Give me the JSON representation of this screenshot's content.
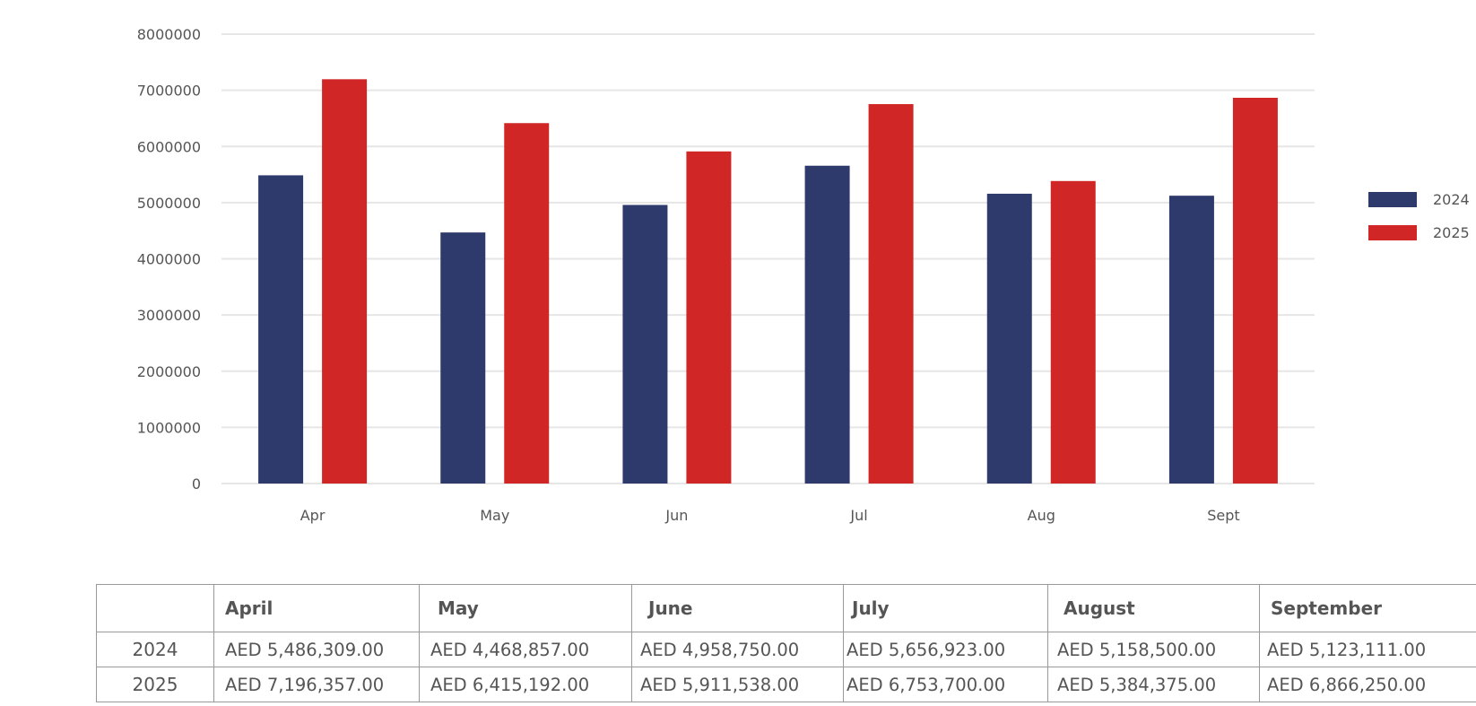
{
  "chart_data": {
    "type": "bar",
    "categories": [
      "Apr",
      "May",
      "Jun",
      "Jul",
      "Aug",
      "Sept"
    ],
    "series": [
      {
        "name": "2024",
        "color": "#2f3a6c",
        "values": [
          5486309,
          4468857,
          4958750,
          5656923,
          5158500,
          5123111
        ]
      },
      {
        "name": "2025",
        "color": "#d12626",
        "values": [
          7196357,
          6415192,
          5911538,
          6753700,
          5384375,
          6866250
        ]
      }
    ],
    "yticks": [
      "0",
      "1000000",
      "2000000",
      "3000000",
      "4000000",
      "5000000",
      "6000000",
      "7000000",
      "8000000"
    ],
    "ylim": [
      0,
      8000000
    ],
    "grid": true,
    "legend_position": "right"
  },
  "table": {
    "columns": [
      "",
      "April",
      "May",
      "June",
      "July",
      "August",
      "September"
    ],
    "rows": [
      {
        "label": "2024",
        "values": [
          "AED 5,486,309.00",
          "AED 4,468,857.00",
          "AED 4,958,750.00",
          "AED 5,656,923.00",
          "AED 5,158,500.00",
          "AED 5,123,111.00"
        ]
      },
      {
        "label": "2025",
        "values": [
          "AED 7,196,357.00",
          "AED 6,415,192.00",
          "AED 5,911,538.00",
          "AED 6,753,700.00",
          "AED 5,384,375.00",
          "AED 6,866,250.00"
        ]
      }
    ]
  }
}
